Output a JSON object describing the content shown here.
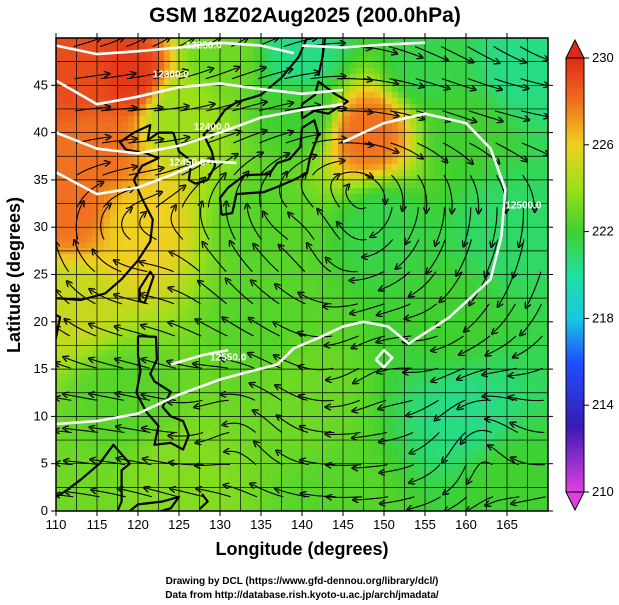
{
  "chart_data": {
    "type": "heatmap",
    "title": "GSM 18Z02Aug2025 (200.0hPa)",
    "xlabel": "Longitude (degrees)",
    "ylabel": "Latitude  (degrees)",
    "xlim": [
      110,
      170
    ],
    "ylim": [
      0,
      50
    ],
    "xticks": [
      110,
      115,
      120,
      125,
      130,
      135,
      140,
      145,
      150,
      155,
      160,
      165
    ],
    "yticks": [
      0,
      5,
      10,
      15,
      20,
      25,
      30,
      35,
      40,
      45
    ],
    "grid": true,
    "colorbar": {
      "min": 210,
      "max": 230,
      "ticks": [
        210,
        214,
        218,
        222,
        226,
        230
      ],
      "stops": [
        {
          "value": 210,
          "color": "#e040e0"
        },
        {
          "value": 213,
          "color": "#3a1ab4"
        },
        {
          "value": 216,
          "color": "#1f4fff"
        },
        {
          "value": 218,
          "color": "#18c8e0"
        },
        {
          "value": 220,
          "color": "#20e0a0"
        },
        {
          "value": 222,
          "color": "#40d030"
        },
        {
          "value": 224,
          "color": "#9be01a"
        },
        {
          "value": 226,
          "color": "#f0d020"
        },
        {
          "value": 228,
          "color": "#f07020"
        },
        {
          "value": 230,
          "color": "#e02818"
        }
      ]
    },
    "field_points": [
      {
        "lon": 110,
        "lat": 0,
        "value": 223.0
      },
      {
        "lon": 125,
        "lat": 3,
        "value": 223.5
      },
      {
        "lon": 145,
        "lat": 0,
        "value": 222.5
      },
      {
        "lon": 165,
        "lat": 3,
        "value": 222.0
      },
      {
        "lon": 118,
        "lat": 12,
        "value": 222.5
      },
      {
        "lon": 140,
        "lat": 12,
        "value": 223.0
      },
      {
        "lon": 160,
        "lat": 10,
        "value": 220.5
      },
      {
        "lon": 112,
        "lat": 22,
        "value": 225.0
      },
      {
        "lon": 135,
        "lat": 20,
        "value": 222.5
      },
      {
        "lon": 158,
        "lat": 20,
        "value": 222.0
      },
      {
        "lon": 112,
        "lat": 32,
        "value": 228.0
      },
      {
        "lon": 120,
        "lat": 30,
        "value": 226.0
      },
      {
        "lon": 135,
        "lat": 30,
        "value": 222.5
      },
      {
        "lon": 150,
        "lat": 30,
        "value": 221.5
      },
      {
        "lon": 165,
        "lat": 30,
        "value": 221.0
      },
      {
        "lon": 115,
        "lat": 38,
        "value": 228.0
      },
      {
        "lon": 125,
        "lat": 42,
        "value": 224.0
      },
      {
        "lon": 140,
        "lat": 42,
        "value": 222.0
      },
      {
        "lon": 148,
        "lat": 40,
        "value": 228.0
      },
      {
        "lon": 160,
        "lat": 40,
        "value": 222.0
      },
      {
        "lon": 113,
        "lat": 46,
        "value": 229.0
      },
      {
        "lon": 119,
        "lat": 46,
        "value": 229.5
      },
      {
        "lon": 130,
        "lat": 48,
        "value": 223.0
      },
      {
        "lon": 140,
        "lat": 48,
        "value": 220.5
      },
      {
        "lon": 155,
        "lat": 47,
        "value": 221.5
      },
      {
        "lon": 167,
        "lat": 47,
        "value": 220.5
      }
    ],
    "contours": [
      {
        "label": "12300.0",
        "label_lon": 124,
        "label_lat": 45.8,
        "points": [
          [
            110,
            45.5
          ],
          [
            115,
            43
          ],
          [
            120,
            43.8
          ],
          [
            125,
            44.8
          ],
          [
            130,
            45.2
          ],
          [
            135,
            44.6
          ],
          [
            140,
            44.1
          ],
          [
            145,
            44.5
          ]
        ]
      },
      {
        "label": "12250.0",
        "label_lon": 128,
        "label_lat": 48.9,
        "points": [
          [
            110,
            49.2
          ],
          [
            115,
            48.3
          ],
          [
            120,
            48.6
          ],
          [
            125,
            49
          ],
          [
            130,
            49.5
          ],
          [
            135,
            49.2
          ],
          [
            139,
            48.4
          ]
        ]
      },
      {
        "label": "12400.0",
        "label_lon": 129,
        "label_lat": 40.3,
        "points": [
          [
            110,
            40
          ],
          [
            115,
            38.3
          ],
          [
            120,
            37.8
          ],
          [
            125,
            38.6
          ],
          [
            130,
            40
          ],
          [
            135,
            41.6
          ],
          [
            140,
            42.4
          ],
          [
            145,
            43
          ]
        ]
      },
      {
        "label": "12450.0",
        "label_lon": 126,
        "label_lat": 36.5,
        "points": [
          [
            110,
            35.8
          ],
          [
            115,
            33.5
          ],
          [
            120,
            34.2
          ],
          [
            124,
            35.5
          ],
          [
            128,
            37
          ],
          [
            132,
            36.8
          ]
        ]
      },
      {
        "label": "12500.0",
        "label_lon": 167,
        "label_lat": 32,
        "points": [
          [
            145,
            39
          ],
          [
            150,
            41
          ],
          [
            155,
            42
          ],
          [
            160,
            41
          ],
          [
            163,
            38.3
          ],
          [
            164.8,
            34
          ],
          [
            164.3,
            29
          ],
          [
            163,
            24.5
          ],
          [
            158,
            20.5
          ],
          [
            153,
            17.7
          ],
          [
            150.5,
            19.5
          ],
          [
            147.5,
            20
          ],
          [
            145,
            19.5
          ],
          [
            142,
            18.3
          ],
          [
            139,
            17.2
          ],
          [
            137,
            15.5
          ],
          [
            133,
            14.6
          ],
          [
            130,
            13.9
          ],
          [
            125,
            12.3
          ],
          [
            120,
            10.3
          ],
          [
            115,
            9.5
          ],
          [
            110,
            9.2
          ]
        ]
      },
      {
        "label": "12550.0",
        "label_lon": 131,
        "label_lat": 15.9,
        "points": [
          [
            124,
            15.5
          ],
          [
            128,
            16.5
          ],
          [
            131,
            17
          ]
        ]
      },
      {
        "label": "",
        "label_lon": 0,
        "label_lat": 0,
        "points": [
          [
            149,
            16
          ],
          [
            150,
            17
          ],
          [
            151,
            16.2
          ],
          [
            150,
            15.2
          ],
          [
            149,
            16
          ]
        ]
      },
      {
        "label": "",
        "label_lon": 0,
        "label_lat": 0,
        "points": [
          [
            140,
            49.2
          ],
          [
            145,
            49
          ],
          [
            150,
            49.3
          ],
          [
            155,
            49.5
          ]
        ]
      }
    ],
    "vortices": [
      {
        "lon": 150,
        "lat": 16,
        "rx": 7,
        "ry": 5
      },
      {
        "lon": 161,
        "lat": 10,
        "rx": 6,
        "ry": 4
      },
      {
        "lon": 141,
        "lat": 30,
        "rx": 4,
        "ry": 3
      },
      {
        "lon": 133,
        "lat": 11,
        "rx": 4,
        "ry": 3
      }
    ],
    "credit_lines": [
      "Drawing by DCL (https://www.gfd-dennou.org/library/dcl/)",
      "Data from http://database.rish.kyoto-u.ac.jp/arch/jmadata/"
    ]
  }
}
